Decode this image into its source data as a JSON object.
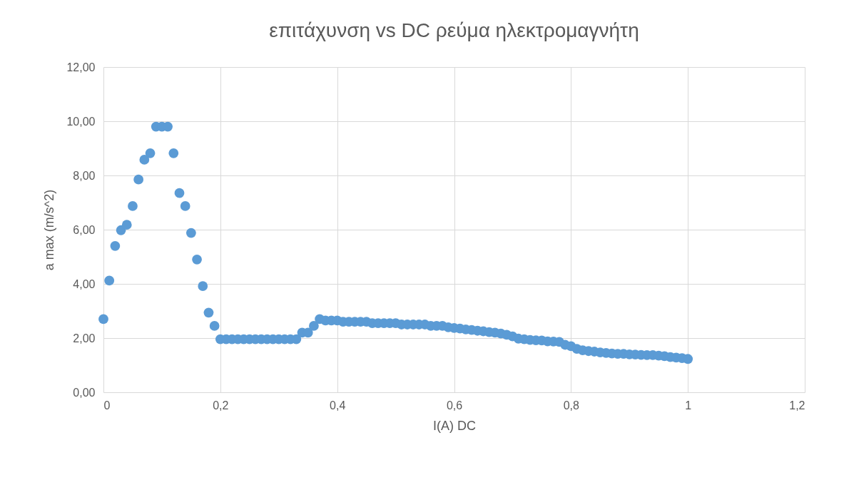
{
  "chart_data": {
    "type": "scatter",
    "title": "επιτάχυνση vs DC ρεύμα ηλεκτρομαγνήτη",
    "xlabel": "I(A) DC",
    "ylabel": "a max (m/s^2)",
    "x": [
      0,
      0.01,
      0.02,
      0.03,
      0.04,
      0.05,
      0.06,
      0.07,
      0.08,
      0.09,
      0.1,
      0.11,
      0.12,
      0.13,
      0.14,
      0.15,
      0.16,
      0.17,
      0.18,
      0.19,
      0.2,
      0.21,
      0.22,
      0.23,
      0.24,
      0.25,
      0.26,
      0.27,
      0.28,
      0.29,
      0.3,
      0.31,
      0.32,
      0.33,
      0.34,
      0.35,
      0.36,
      0.37,
      0.38,
      0.39,
      0.4,
      0.41,
      0.42,
      0.43,
      0.44,
      0.45,
      0.46,
      0.47,
      0.48,
      0.49,
      0.5,
      0.51,
      0.52,
      0.53,
      0.54,
      0.55,
      0.56,
      0.57,
      0.58,
      0.59,
      0.6,
      0.61,
      0.62,
      0.63,
      0.64,
      0.65,
      0.66,
      0.67,
      0.68,
      0.69,
      0.7,
      0.71,
      0.72,
      0.73,
      0.74,
      0.75,
      0.76,
      0.77,
      0.78,
      0.79,
      0.8,
      0.81,
      0.82,
      0.83,
      0.84,
      0.85,
      0.86,
      0.87,
      0.88,
      0.89,
      0.9,
      0.91,
      0.92,
      0.93,
      0.94,
      0.95,
      0.96,
      0.97,
      0.98,
      0.99,
      1
    ],
    "series": [
      {
        "color": "#5b9bd5",
        "values": [
          2.7,
          4.12,
          5.4,
          5.98,
          6.18,
          6.87,
          7.85,
          8.58,
          8.82,
          9.8,
          9.8,
          9.8,
          8.82,
          7.35,
          6.87,
          5.88,
          4.9,
          3.92,
          2.94,
          2.45,
          1.96,
          1.96,
          1.96,
          1.96,
          1.96,
          1.96,
          1.96,
          1.96,
          1.96,
          1.96,
          1.96,
          1.96,
          1.96,
          1.96,
          2.2,
          2.2,
          2.45,
          2.7,
          2.65,
          2.65,
          2.65,
          2.6,
          2.6,
          2.6,
          2.6,
          2.6,
          2.55,
          2.55,
          2.55,
          2.55,
          2.55,
          2.5,
          2.5,
          2.5,
          2.5,
          2.5,
          2.45,
          2.45,
          2.45,
          2.4,
          2.37,
          2.35,
          2.32,
          2.3,
          2.27,
          2.25,
          2.22,
          2.2,
          2.17,
          2.12,
          2.06,
          1.98,
          1.96,
          1.93,
          1.92,
          1.91,
          1.88,
          1.87,
          1.86,
          1.75,
          1.7,
          1.6,
          1.55,
          1.52,
          1.5,
          1.47,
          1.45,
          1.43,
          1.42,
          1.42,
          1.4,
          1.39,
          1.38,
          1.37,
          1.37,
          1.35,
          1.33,
          1.3,
          1.28,
          1.26,
          1.23
        ]
      }
    ],
    "xlim": [
      0,
      1.2
    ],
    "xticks": [
      0,
      {
        "value": 0.2,
        "label": "0,2"
      },
      {
        "value": 0.4,
        "label": "0,4"
      },
      {
        "value": 0.6,
        "label": "0,6"
      },
      {
        "value": 0.8,
        "label": "0,8"
      },
      1,
      {
        "value": 1.2,
        "label": "1,2"
      }
    ],
    "ylim": [
      0,
      12
    ],
    "yticks": [
      {
        "value": 0,
        "label": "0,00"
      },
      {
        "value": 2,
        "label": "2,00"
      },
      {
        "value": 4,
        "label": "4,00"
      },
      {
        "value": 6,
        "label": "6,00"
      },
      {
        "value": 8,
        "label": "8,00"
      },
      {
        "value": 10,
        "label": "10,00"
      },
      {
        "value": 12,
        "label": "12,00"
      }
    ],
    "grid": true,
    "marker": "circle"
  }
}
